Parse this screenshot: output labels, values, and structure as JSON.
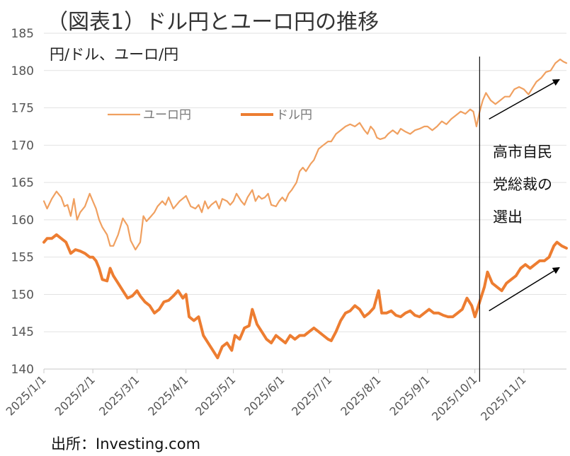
{
  "title": "（図表1）ドル円とユーロ円の推移",
  "unit_label": "円/ドル、ユーロ/円",
  "source": "出所：Investing.com",
  "chart_data": {
    "type": "line",
    "title": "（図表1）ドル円とユーロ円の推移",
    "ylabel": "円/ドル、ユーロ/円",
    "ylim": [
      140,
      185
    ],
    "yticks": [
      140,
      145,
      150,
      155,
      160,
      165,
      170,
      175,
      180,
      185
    ],
    "xlim": [
      "2025-01-01",
      "2025-11-28"
    ],
    "xticks": [
      {
        "date": "2025-01-01",
        "label": "2025/1/1"
      },
      {
        "date": "2025-02-01",
        "label": "2025/2/1"
      },
      {
        "date": "2025-03-01",
        "label": "2025/3/1"
      },
      {
        "date": "2025-04-01",
        "label": "2025/4/1"
      },
      {
        "date": "2025-05-01",
        "label": "2025/5/1"
      },
      {
        "date": "2025-06-01",
        "label": "2025/6/1"
      },
      {
        "date": "2025-07-01",
        "label": "2025/7/1"
      },
      {
        "date": "2025-08-01",
        "label": "2025/8/1"
      },
      {
        "date": "2025-09-01",
        "label": "2025/9/1"
      },
      {
        "date": "2025-10-01",
        "label": "2025/10/1"
      },
      {
        "date": "2025-11-01",
        "label": "2025/11/1"
      }
    ],
    "grid": "horizontal",
    "legend": "upper-left inside plot",
    "series": [
      {
        "name": "ユーロ円",
        "color": "#F0A060",
        "line": "thin",
        "points": [
          [
            "2025-01-01",
            162.5
          ],
          [
            "2025-01-03",
            161.5
          ],
          [
            "2025-01-06",
            162.8
          ],
          [
            "2025-01-09",
            163.8
          ],
          [
            "2025-01-12",
            163.0
          ],
          [
            "2025-01-14",
            161.8
          ],
          [
            "2025-01-16",
            162.0
          ],
          [
            "2025-01-18",
            160.5
          ],
          [
            "2025-01-20",
            162.8
          ],
          [
            "2025-01-22",
            160.0
          ],
          [
            "2025-01-24",
            161.0
          ],
          [
            "2025-01-27",
            161.8
          ],
          [
            "2025-01-30",
            163.5
          ],
          [
            "2025-02-01",
            162.5
          ],
          [
            "2025-02-03",
            161.5
          ],
          [
            "2025-02-05",
            160.0
          ],
          [
            "2025-02-07",
            159.0
          ],
          [
            "2025-02-10",
            158.0
          ],
          [
            "2025-02-12",
            156.5
          ],
          [
            "2025-02-14",
            156.5
          ],
          [
            "2025-02-17",
            158.0
          ],
          [
            "2025-02-20",
            160.2
          ],
          [
            "2025-02-23",
            159.2
          ],
          [
            "2025-02-25",
            157.2
          ],
          [
            "2025-02-28",
            156.0
          ],
          [
            "2025-03-03",
            157.0
          ],
          [
            "2025-03-05",
            160.5
          ],
          [
            "2025-03-07",
            159.8
          ],
          [
            "2025-03-10",
            160.5
          ],
          [
            "2025-03-12",
            161.0
          ],
          [
            "2025-03-14",
            161.8
          ],
          [
            "2025-03-17",
            162.5
          ],
          [
            "2025-03-19",
            162.0
          ],
          [
            "2025-03-21",
            163.0
          ],
          [
            "2025-03-24",
            161.5
          ],
          [
            "2025-03-26",
            162.0
          ],
          [
            "2025-03-28",
            162.5
          ],
          [
            "2025-04-01",
            163.2
          ],
          [
            "2025-04-04",
            161.8
          ],
          [
            "2025-04-07",
            161.5
          ],
          [
            "2025-04-09",
            162.0
          ],
          [
            "2025-04-11",
            161.0
          ],
          [
            "2025-04-13",
            162.5
          ],
          [
            "2025-04-15",
            161.5
          ],
          [
            "2025-04-17",
            162.0
          ],
          [
            "2025-04-20",
            162.5
          ],
          [
            "2025-04-22",
            161.5
          ],
          [
            "2025-04-24",
            162.8
          ],
          [
            "2025-04-27",
            162.5
          ],
          [
            "2025-04-29",
            162.0
          ],
          [
            "2025-05-01",
            162.5
          ],
          [
            "2025-05-03",
            163.5
          ],
          [
            "2025-05-06",
            162.5
          ],
          [
            "2025-05-08",
            162.0
          ],
          [
            "2025-05-10",
            163.0
          ],
          [
            "2025-05-13",
            164.0
          ],
          [
            "2025-05-15",
            162.5
          ],
          [
            "2025-05-17",
            163.2
          ],
          [
            "2025-05-19",
            162.8
          ],
          [
            "2025-05-21",
            163.0
          ],
          [
            "2025-05-23",
            163.5
          ],
          [
            "2025-05-25",
            162.0
          ],
          [
            "2025-05-28",
            161.8
          ],
          [
            "2025-05-30",
            162.5
          ],
          [
            "2025-06-01",
            163.0
          ],
          [
            "2025-06-03",
            162.5
          ],
          [
            "2025-06-05",
            163.5
          ],
          [
            "2025-06-07",
            164.0
          ],
          [
            "2025-06-10",
            165.0
          ],
          [
            "2025-06-12",
            166.5
          ],
          [
            "2025-06-14",
            167.0
          ],
          [
            "2025-06-16",
            166.5
          ],
          [
            "2025-06-19",
            167.5
          ],
          [
            "2025-06-21",
            168.0
          ],
          [
            "2025-06-24",
            169.5
          ],
          [
            "2025-06-27",
            170.0
          ],
          [
            "2025-06-30",
            170.5
          ],
          [
            "2025-07-02",
            170.5
          ],
          [
            "2025-07-05",
            171.5
          ],
          [
            "2025-07-08",
            172.0
          ],
          [
            "2025-07-11",
            172.5
          ],
          [
            "2025-07-14",
            172.8
          ],
          [
            "2025-07-17",
            172.5
          ],
          [
            "2025-07-20",
            173.0
          ],
          [
            "2025-07-23",
            172.0
          ],
          [
            "2025-07-25",
            171.5
          ],
          [
            "2025-07-27",
            172.5
          ],
          [
            "2025-07-29",
            172.0
          ],
          [
            "2025-07-31",
            171.0
          ],
          [
            "2025-08-02",
            170.8
          ],
          [
            "2025-08-05",
            171.0
          ],
          [
            "2025-08-07",
            171.5
          ],
          [
            "2025-08-10",
            172.0
          ],
          [
            "2025-08-13",
            171.5
          ],
          [
            "2025-08-15",
            172.2
          ],
          [
            "2025-08-18",
            171.8
          ],
          [
            "2025-08-21",
            171.5
          ],
          [
            "2025-08-24",
            172.0
          ],
          [
            "2025-08-27",
            172.2
          ],
          [
            "2025-08-30",
            172.5
          ],
          [
            "2025-09-01",
            172.5
          ],
          [
            "2025-09-04",
            172.0
          ],
          [
            "2025-09-07",
            172.5
          ],
          [
            "2025-09-10",
            173.2
          ],
          [
            "2025-09-13",
            172.8
          ],
          [
            "2025-09-16",
            173.5
          ],
          [
            "2025-09-19",
            174.0
          ],
          [
            "2025-09-22",
            174.5
          ],
          [
            "2025-09-25",
            174.2
          ],
          [
            "2025-09-28",
            174.8
          ],
          [
            "2025-09-30",
            174.5
          ],
          [
            "2025-10-02",
            172.5
          ],
          [
            "2025-10-04",
            174.5
          ],
          [
            "2025-10-06",
            176.0
          ],
          [
            "2025-10-08",
            177.0
          ],
          [
            "2025-10-11",
            176.0
          ],
          [
            "2025-10-14",
            175.5
          ],
          [
            "2025-10-17",
            176.0
          ],
          [
            "2025-10-20",
            176.5
          ],
          [
            "2025-10-23",
            176.5
          ],
          [
            "2025-10-26",
            177.5
          ],
          [
            "2025-10-29",
            177.8
          ],
          [
            "2025-11-01",
            177.5
          ],
          [
            "2025-11-04",
            176.8
          ],
          [
            "2025-11-06",
            177.5
          ],
          [
            "2025-11-09",
            178.5
          ],
          [
            "2025-11-12",
            179.0
          ],
          [
            "2025-11-15",
            179.8
          ],
          [
            "2025-11-18",
            180.0
          ],
          [
            "2025-11-21",
            181.0
          ],
          [
            "2025-11-24",
            181.5
          ],
          [
            "2025-11-26",
            181.2
          ],
          [
            "2025-11-28",
            181.0
          ]
        ]
      },
      {
        "name": "ドル円",
        "color": "#ED7D31",
        "line": "thick",
        "points": [
          [
            "2025-01-01",
            157.0
          ],
          [
            "2025-01-03",
            157.5
          ],
          [
            "2025-01-06",
            157.5
          ],
          [
            "2025-01-09",
            158.0
          ],
          [
            "2025-01-12",
            157.5
          ],
          [
            "2025-01-15",
            157.0
          ],
          [
            "2025-01-18",
            155.5
          ],
          [
            "2025-01-21",
            156.0
          ],
          [
            "2025-01-24",
            155.8
          ],
          [
            "2025-01-27",
            155.5
          ],
          [
            "2025-01-30",
            155.0
          ],
          [
            "2025-02-01",
            155.0
          ],
          [
            "2025-02-03",
            154.5
          ],
          [
            "2025-02-05",
            153.5
          ],
          [
            "2025-02-07",
            152.0
          ],
          [
            "2025-02-10",
            151.8
          ],
          [
            "2025-02-12",
            153.5
          ],
          [
            "2025-02-14",
            152.5
          ],
          [
            "2025-02-17",
            151.5
          ],
          [
            "2025-02-20",
            150.5
          ],
          [
            "2025-02-23",
            149.5
          ],
          [
            "2025-02-26",
            149.8
          ],
          [
            "2025-03-01",
            150.5
          ],
          [
            "2025-03-03",
            149.8
          ],
          [
            "2025-03-06",
            149.0
          ],
          [
            "2025-03-09",
            148.5
          ],
          [
            "2025-03-12",
            147.5
          ],
          [
            "2025-03-15",
            148.0
          ],
          [
            "2025-03-18",
            149.0
          ],
          [
            "2025-03-21",
            149.2
          ],
          [
            "2025-03-24",
            149.8
          ],
          [
            "2025-03-27",
            150.5
          ],
          [
            "2025-03-30",
            149.5
          ],
          [
            "2025-04-01",
            150.0
          ],
          [
            "2025-04-03",
            147.0
          ],
          [
            "2025-04-06",
            146.5
          ],
          [
            "2025-04-09",
            147.0
          ],
          [
            "2025-04-12",
            144.5
          ],
          [
            "2025-04-15",
            143.5
          ],
          [
            "2025-04-18",
            142.5
          ],
          [
            "2025-04-21",
            141.5
          ],
          [
            "2025-04-24",
            143.0
          ],
          [
            "2025-04-27",
            143.5
          ],
          [
            "2025-04-30",
            142.5
          ],
          [
            "2025-05-02",
            144.5
          ],
          [
            "2025-05-05",
            144.0
          ],
          [
            "2025-05-08",
            145.5
          ],
          [
            "2025-05-11",
            145.8
          ],
          [
            "2025-05-13",
            148.0
          ],
          [
            "2025-05-16",
            146.0
          ],
          [
            "2025-05-19",
            145.0
          ],
          [
            "2025-05-22",
            144.0
          ],
          [
            "2025-05-25",
            143.5
          ],
          [
            "2025-05-28",
            144.5
          ],
          [
            "2025-05-31",
            144.0
          ],
          [
            "2025-06-03",
            143.5
          ],
          [
            "2025-06-06",
            144.5
          ],
          [
            "2025-06-09",
            144.0
          ],
          [
            "2025-06-12",
            144.5
          ],
          [
            "2025-06-15",
            144.5
          ],
          [
            "2025-06-18",
            145.0
          ],
          [
            "2025-06-21",
            145.5
          ],
          [
            "2025-06-24",
            145.0
          ],
          [
            "2025-06-27",
            144.5
          ],
          [
            "2025-06-30",
            144.0
          ],
          [
            "2025-07-02",
            143.8
          ],
          [
            "2025-07-05",
            145.0
          ],
          [
            "2025-07-08",
            146.5
          ],
          [
            "2025-07-11",
            147.5
          ],
          [
            "2025-07-14",
            147.8
          ],
          [
            "2025-07-17",
            148.5
          ],
          [
            "2025-07-20",
            148.0
          ],
          [
            "2025-07-23",
            147.0
          ],
          [
            "2025-07-26",
            147.5
          ],
          [
            "2025-07-29",
            148.2
          ],
          [
            "2025-08-01",
            150.5
          ],
          [
            "2025-08-03",
            147.5
          ],
          [
            "2025-08-06",
            147.5
          ],
          [
            "2025-08-09",
            147.8
          ],
          [
            "2025-08-12",
            147.2
          ],
          [
            "2025-08-15",
            147.0
          ],
          [
            "2025-08-18",
            147.5
          ],
          [
            "2025-08-21",
            147.8
          ],
          [
            "2025-08-24",
            147.2
          ],
          [
            "2025-08-27",
            147.0
          ],
          [
            "2025-08-30",
            147.5
          ],
          [
            "2025-09-02",
            148.0
          ],
          [
            "2025-09-05",
            147.5
          ],
          [
            "2025-09-08",
            147.5
          ],
          [
            "2025-09-11",
            147.2
          ],
          [
            "2025-09-14",
            147.0
          ],
          [
            "2025-09-17",
            147.0
          ],
          [
            "2025-09-20",
            147.5
          ],
          [
            "2025-09-23",
            148.0
          ],
          [
            "2025-09-26",
            149.5
          ],
          [
            "2025-09-29",
            148.5
          ],
          [
            "2025-10-01",
            147.0
          ],
          [
            "2025-10-04",
            149.0
          ],
          [
            "2025-10-07",
            151.0
          ],
          [
            "2025-10-09",
            153.0
          ],
          [
            "2025-10-12",
            151.5
          ],
          [
            "2025-10-15",
            151.0
          ],
          [
            "2025-10-18",
            150.5
          ],
          [
            "2025-10-21",
            151.5
          ],
          [
            "2025-10-24",
            152.0
          ],
          [
            "2025-10-27",
            152.5
          ],
          [
            "2025-10-30",
            153.5
          ],
          [
            "2025-11-02",
            154.0
          ],
          [
            "2025-11-05",
            153.5
          ],
          [
            "2025-11-08",
            154.0
          ],
          [
            "2025-11-11",
            154.5
          ],
          [
            "2025-11-14",
            154.5
          ],
          [
            "2025-11-17",
            155.0
          ],
          [
            "2025-11-20",
            156.5
          ],
          [
            "2025-11-22",
            157.0
          ],
          [
            "2025-11-25",
            156.5
          ],
          [
            "2025-11-28",
            156.2
          ]
        ]
      }
    ],
    "annotations": [
      {
        "type": "vline",
        "date": "2025-10-04",
        "label_lines": [
          "高市自民",
          "党総裁の",
          "選出"
        ]
      },
      {
        "type": "arrow",
        "from": [
          "2025-10-01",
          173.5
        ],
        "to": [
          "2025-11-28",
          178.8
        ]
      },
      {
        "type": "arrow",
        "from": [
          "2025-10-01",
          147.8
        ],
        "to": [
          "2025-11-28",
          153.6
        ]
      }
    ]
  }
}
